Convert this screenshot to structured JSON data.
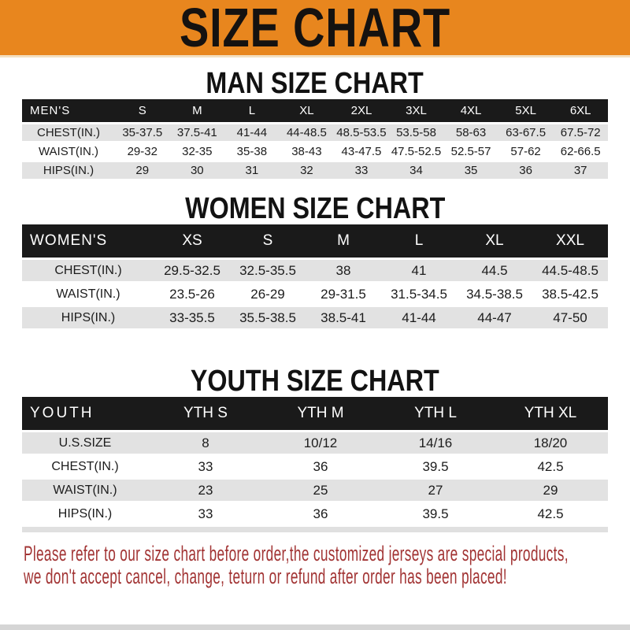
{
  "banner": {
    "title": "SIZE CHART"
  },
  "colors": {
    "banner_bg": "#E8861E",
    "header_bar": "#1A1A1A",
    "row_gray": "#E2E2E2",
    "disclaimer_red": "#A23434",
    "bottom_strip": "#D5D5D5"
  },
  "sections": [
    {
      "heading": "MAN SIZE CHART",
      "table": {
        "label": "MEN'S",
        "columns": [
          "S",
          "M",
          "L",
          "XL",
          "2XL",
          "3XL",
          "4XL",
          "5XL",
          "6XL"
        ],
        "rows": [
          {
            "label": "CHEST(IN.)",
            "values": [
              "35-37.5",
              "37.5-41",
              "41-44",
              "44-48.5",
              "48.5-53.5",
              "53.5-58",
              "58-63",
              "63-67.5",
              "67.5-72"
            ]
          },
          {
            "label": "WAIST(IN.)",
            "values": [
              "29-32",
              "32-35",
              "35-38",
              "38-43",
              "43-47.5",
              "47.5-52.5",
              "52.5-57",
              "57-62",
              "62-66.5"
            ]
          },
          {
            "label": "HIPS(IN.)",
            "values": [
              "29",
              "30",
              "31",
              "32",
              "33",
              "34",
              "35",
              "36",
              "37"
            ]
          }
        ]
      }
    },
    {
      "heading": "WOMEN SIZE CHART",
      "table": {
        "label": "WOMEN'S",
        "columns": [
          "XS",
          "S",
          "M",
          "L",
          "XL",
          "XXL"
        ],
        "rows": [
          {
            "label": "CHEST(IN.)",
            "values": [
              "29.5-32.5",
              "32.5-35.5",
              "38",
              "41",
              "44.5",
              "44.5-48.5"
            ]
          },
          {
            "label": "WAIST(IN.)",
            "values": [
              "23.5-26",
              "26-29",
              "29-31.5",
              "31.5-34.5",
              "34.5-38.5",
              "38.5-42.5"
            ]
          },
          {
            "label": "HIPS(IN.)",
            "values": [
              "33-35.5",
              "35.5-38.5",
              "38.5-41",
              "41-44",
              "44-47",
              "47-50"
            ]
          }
        ]
      }
    },
    {
      "heading": "YOUTH SIZE CHART",
      "table": {
        "label": "YOUTH",
        "columns": [
          "YTH S",
          "YTH M",
          "YTH L",
          "YTH XL"
        ],
        "rows": [
          {
            "label": "U.S.SIZE",
            "values": [
              "8",
              "10/12",
              "14/16",
              "18/20"
            ]
          },
          {
            "label": "CHEST(IN.)",
            "values": [
              "33",
              "36",
              "39.5",
              "42.5"
            ]
          },
          {
            "label": "WAIST(IN.)",
            "values": [
              "23",
              "25",
              "27",
              "29"
            ]
          },
          {
            "label": "HIPS(IN.)",
            "values": [
              "33",
              "36",
              "39.5",
              "42.5"
            ]
          }
        ]
      }
    }
  ],
  "disclaimer": {
    "line1": "Please refer to our size chart before order,the customized jerseys are special products,",
    "line2": "we don't accept cancel, change, teturn or refund after order has been placed!"
  }
}
